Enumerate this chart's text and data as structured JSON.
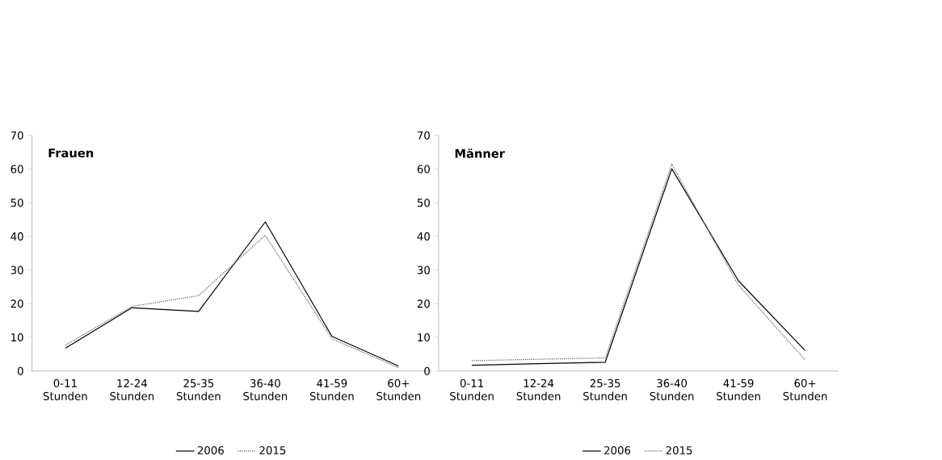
{
  "chart_data": [
    {
      "type": "line",
      "title": "Frauen",
      "categories": [
        "0-11 Stunden",
        "12-24 Stunden",
        "25-35 Stunden",
        "36-40 Stunden",
        "41-59 Stunden",
        "60+ Stunden"
      ],
      "ylim": [
        0,
        70
      ],
      "yticks": [
        0,
        10,
        20,
        30,
        40,
        50,
        60,
        70
      ],
      "legend": "bottom",
      "series": [
        {
          "name": "2006",
          "color": "#000000",
          "line_style": "solid",
          "values": [
            6.8,
            18.8,
            17.7,
            44.3,
            10.3,
            1.5
          ]
        },
        {
          "name": "2015",
          "color": "#595959",
          "line_style": "dotted",
          "values": [
            7.7,
            19.2,
            22.4,
            40.3,
            9.6,
            1.0
          ]
        }
      ]
    },
    {
      "type": "line",
      "title": "Männer",
      "categories": [
        "0-11 Stunden",
        "12-24 Stunden",
        "25-35 Stunden",
        "36-40 Stunden",
        "41-59 Stunden",
        "60+ Stunden"
      ],
      "ylim": [
        0,
        70
      ],
      "yticks": [
        0,
        10,
        20,
        30,
        40,
        50,
        60,
        70
      ],
      "legend": "bottom",
      "series": [
        {
          "name": "2006",
          "color": "#000000",
          "line_style": "solid",
          "values": [
            1.7,
            2.2,
            2.6,
            60.1,
            26.8,
            6.1
          ]
        },
        {
          "name": "2015",
          "color": "#595959",
          "line_style": "dotted",
          "values": [
            3.1,
            3.5,
            3.9,
            61.5,
            25.5,
            3.3
          ]
        }
      ]
    }
  ]
}
